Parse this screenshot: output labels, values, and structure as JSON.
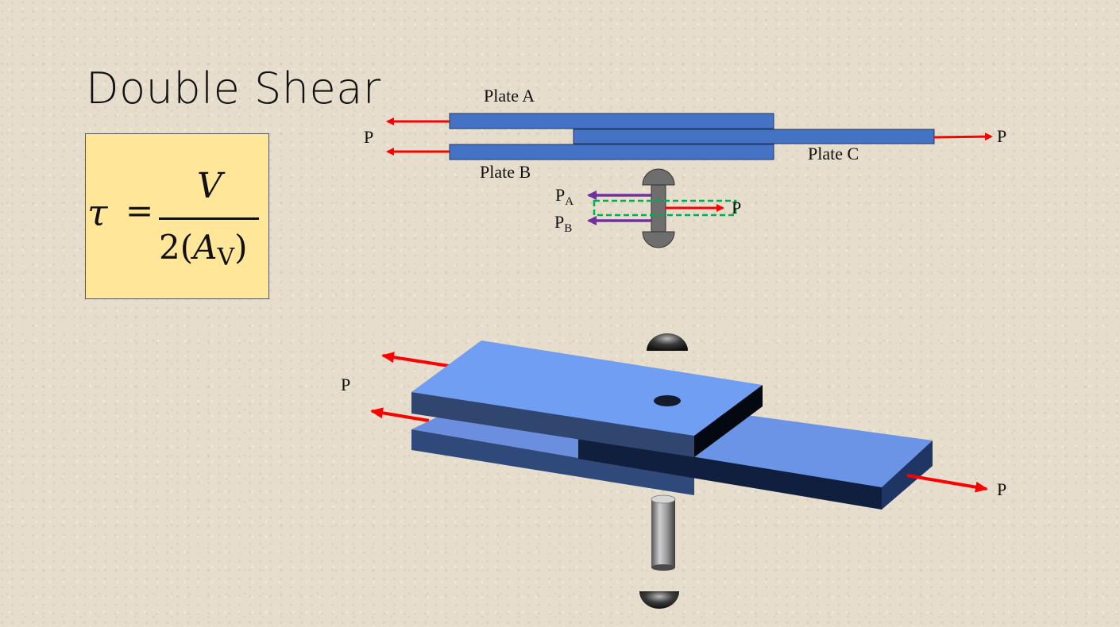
{
  "title": "Double Shear",
  "formula": {
    "lhs": "τ",
    "equals": "=",
    "numerator": "V",
    "denominator_prefix": "2(",
    "denominator_var": "A",
    "denominator_sub": "V",
    "denominator_suffix": ")"
  },
  "top_diagram": {
    "plate_a_label": "Plate A",
    "plate_b_label": "Plate B",
    "plate_c_label": "Plate C",
    "load_left": "P",
    "load_right": "P",
    "bolt_force_a": "P",
    "bolt_force_a_sub": "A",
    "bolt_force_b": "P",
    "bolt_force_b_sub": "B",
    "bolt_force_c": "P"
  },
  "iso_diagram": {
    "load_left": "P",
    "load_right": "P"
  },
  "colors": {
    "plate_blue": "#4472c4",
    "force_arrow": "#ff0000",
    "bolt_force_arrow": "#7030a0",
    "shear_plane": "#00b050",
    "formula_fill": "#ffe699"
  }
}
